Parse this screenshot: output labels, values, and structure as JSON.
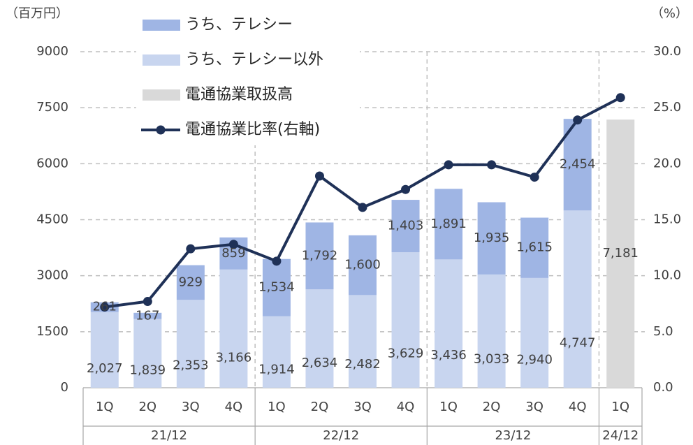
{
  "chart_data": {
    "type": "bar",
    "y_axis_label": "（百万円）",
    "y2_axis_label": "（%）",
    "categories": [
      "1Q",
      "2Q",
      "3Q",
      "4Q",
      "1Q",
      "2Q",
      "3Q",
      "4Q",
      "1Q",
      "2Q",
      "3Q",
      "4Q",
      "1Q"
    ],
    "periods": [
      "21/12",
      "21/12",
      "21/12",
      "21/12",
      "22/12",
      "22/12",
      "22/12",
      "22/12",
      "23/12",
      "23/12",
      "23/12",
      "23/12",
      "24/12"
    ],
    "ylim": [
      0,
      9000
    ],
    "yticks": [
      0,
      1500,
      3000,
      4500,
      6000,
      7500,
      9000
    ],
    "y2lim": [
      0,
      30
    ],
    "y2ticks": [
      {
        "value": 0,
        "label": "0.0"
      },
      {
        "value": 5,
        "label": "5.0"
      },
      {
        "value": 10,
        "label": "10.0"
      },
      {
        "value": 15,
        "label": "15.0"
      },
      {
        "value": 20,
        "label": "20.0"
      },
      {
        "value": 25,
        "label": "25.0"
      },
      {
        "value": 30,
        "label": "30.0"
      }
    ],
    "grid": true,
    "series": [
      {
        "name": "うち、テレシー",
        "color": "#9fb5e4",
        "values": [
          261,
          167,
          929,
          859,
          1534,
          1792,
          1600,
          1403,
          1891,
          1935,
          1615,
          2454,
          null
        ],
        "value_labels": [
          "261",
          "167",
          "929",
          "859",
          "1,534",
          "1,792",
          "1,600",
          "1,403",
          "1,891",
          "1,935",
          "1,615",
          "2,454",
          null
        ]
      },
      {
        "name": "うち、テレシー以外",
        "color": "#c8d5ef",
        "values": [
          2027,
          1839,
          2353,
          3166,
          1914,
          2634,
          2482,
          3629,
          3436,
          3033,
          2940,
          4747,
          null
        ],
        "value_labels": [
          "2,027",
          "1,839",
          "2,353",
          "3,166",
          "1,914",
          "2,634",
          "2,482",
          "3,629",
          "3,436",
          "3,033",
          "2,940",
          "4,747",
          null
        ]
      },
      {
        "name": "電通協業取扱高",
        "color": "#d9d9d9",
        "values": [
          null,
          null,
          null,
          null,
          null,
          null,
          null,
          null,
          null,
          null,
          null,
          null,
          7181
        ],
        "value_labels": [
          null,
          null,
          null,
          null,
          null,
          null,
          null,
          null,
          null,
          null,
          null,
          null,
          "7,181"
        ]
      },
      {
        "name": "電通協業比率(右軸)",
        "color": "#1f3157",
        "type": "line",
        "axis": "y2",
        "values": [
          7.2,
          7.7,
          12.4,
          12.8,
          11.3,
          18.9,
          16.1,
          17.7,
          19.9,
          19.9,
          18.8,
          23.9,
          25.9
        ]
      }
    ]
  }
}
